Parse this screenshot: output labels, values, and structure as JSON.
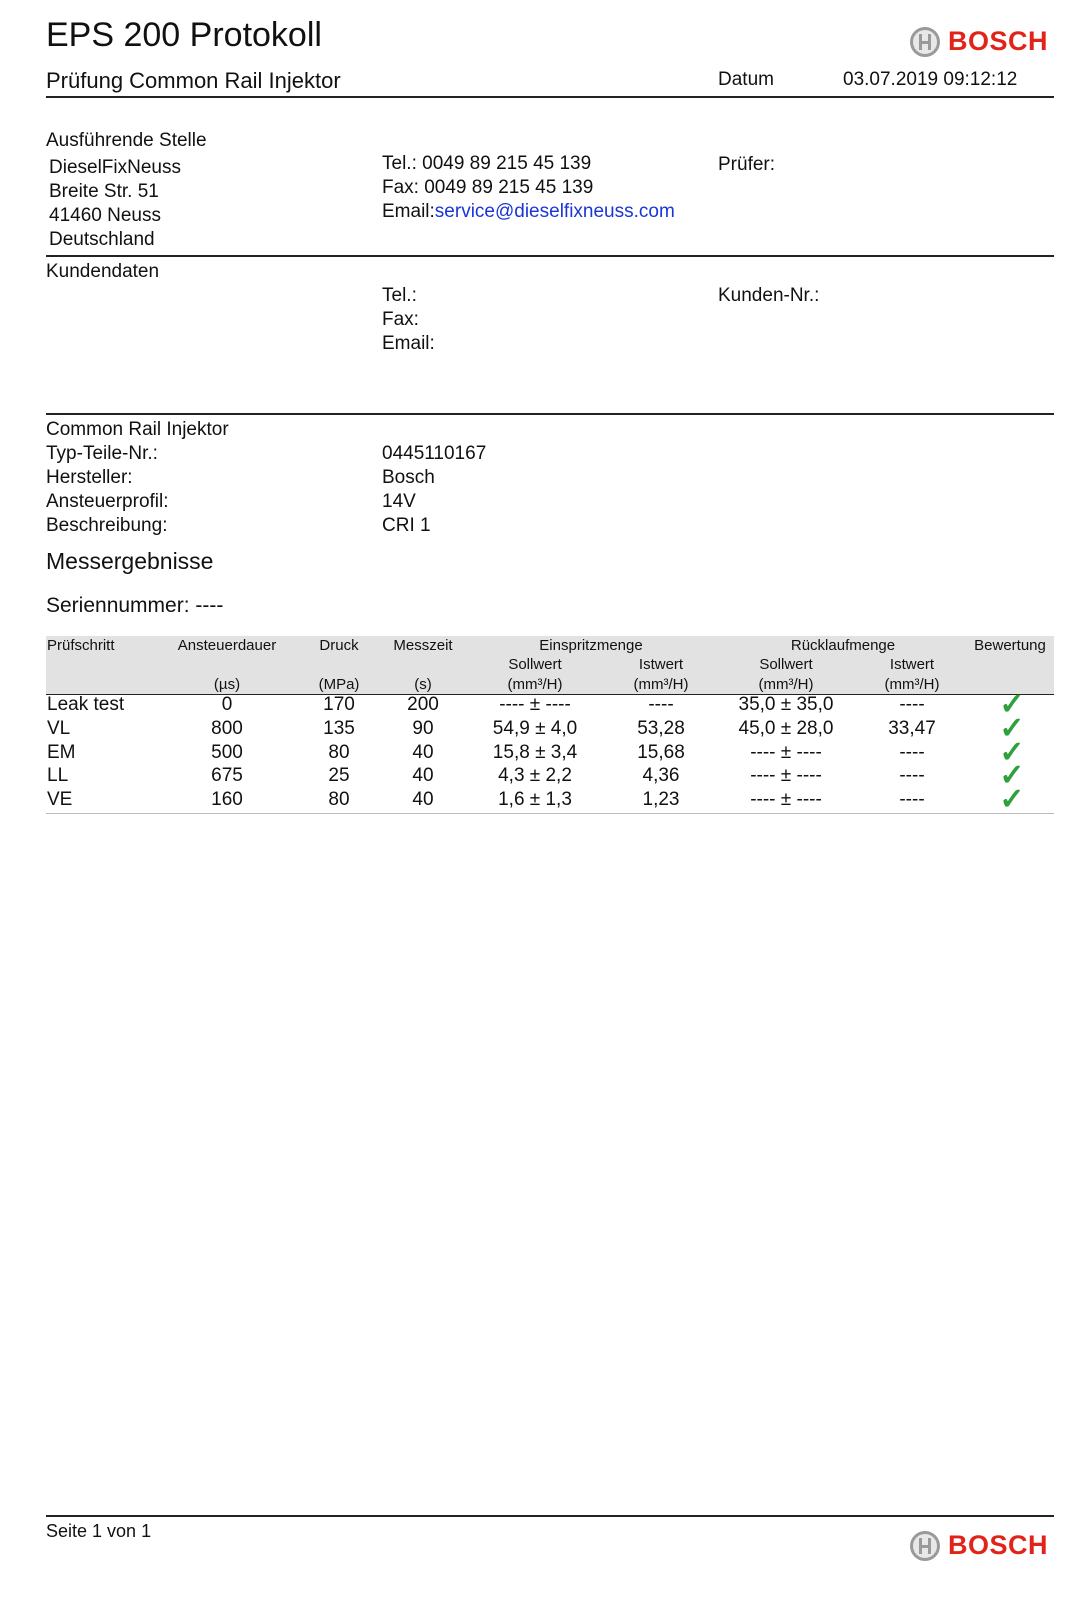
{
  "header": {
    "title": "EPS 200 Protokoll",
    "subtitle": "Prüfung Common Rail Injektor",
    "date_label": "Datum",
    "date_value": "03.07.2019 09:12:12",
    "logo": "BOSCH"
  },
  "station": {
    "heading": "Ausführende Stelle",
    "address": [
      "DieselFixNeuss",
      "Breite Str. 51",
      "41460 Neuss",
      "Deutschland"
    ],
    "tel_label": "Tel.:",
    "tel": "0049 89 215 45 139",
    "fax_label": "Fax:",
    "fax": "0049 89 215 45 139",
    "email_label": "Email:",
    "email": "service@dieselfixneuss.com",
    "tester_label": "Prüfer:"
  },
  "customer": {
    "heading": "Kundendaten",
    "tel_label": "Tel.:",
    "fax_label": "Fax:",
    "email_label": "Email:",
    "number_label": "Kunden-Nr.:"
  },
  "injector": {
    "heading": "Common Rail Injektor",
    "fields": [
      {
        "label": "Typ-Teile-Nr.:",
        "value": "0445110167"
      },
      {
        "label": "Hersteller:",
        "value": "Bosch"
      },
      {
        "label": "Ansteuerprofil:",
        "value": "14V"
      },
      {
        "label": "Beschreibung:",
        "value": "CRI 1"
      }
    ]
  },
  "results": {
    "heading": "Messergebnisse",
    "serial": "Seriennummer: ----",
    "table": {
      "headers": {
        "step": "Prüfschritt",
        "duration": "Ansteuerdauer",
        "duration_unit": "(µs)",
        "pressure": "Druck",
        "pressure_unit": "(MPa)",
        "time": "Messzeit",
        "time_unit": "(s)",
        "injection": "Einspritzmenge",
        "return": "Rücklaufmenge",
        "target": "Sollwert",
        "actual": "Istwert",
        "flow_unit": "(mm³/H)",
        "rating": "Bewertung"
      },
      "rows": [
        {
          "step": "Leak test",
          "duration": "0",
          "pressure": "170",
          "time": "200",
          "inj_target": "---- ± ----",
          "inj_actual": "----",
          "ret_target": "35,0 ± 35,0",
          "ret_actual": "----",
          "rating": "✓"
        },
        {
          "step": "VL",
          "duration": "800",
          "pressure": "135",
          "time": "90",
          "inj_target": "54,9 ± 4,0",
          "inj_actual": "53,28",
          "ret_target": "45,0 ± 28,0",
          "ret_actual": "33,47",
          "rating": "✓"
        },
        {
          "step": "EM",
          "duration": "500",
          "pressure": "80",
          "time": "40",
          "inj_target": "15,8 ± 3,4",
          "inj_actual": "15,68",
          "ret_target": "---- ± ----",
          "ret_actual": "----",
          "rating": "✓"
        },
        {
          "step": "LL",
          "duration": "675",
          "pressure": "25",
          "time": "40",
          "inj_target": "4,3 ± 2,2",
          "inj_actual": "4,36",
          "ret_target": "---- ± ----",
          "ret_actual": "----",
          "rating": "✓"
        },
        {
          "step": "VE",
          "duration": "160",
          "pressure": "80",
          "time": "40",
          "inj_target": "1,6 ± 1,3",
          "inj_actual": "1,23",
          "ret_target": "---- ± ----",
          "ret_actual": "----",
          "rating": "✓"
        }
      ]
    }
  },
  "footer": {
    "page": "Seite 1 von 1",
    "logo": "BOSCH"
  }
}
